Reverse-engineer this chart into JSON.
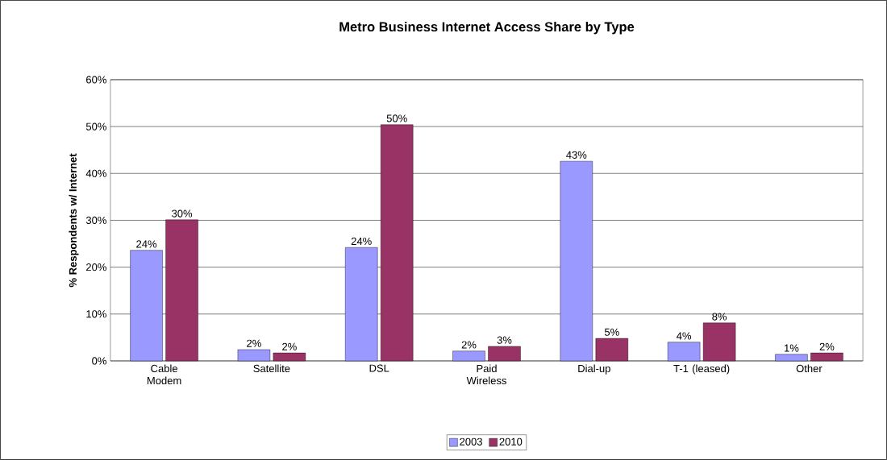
{
  "chart_data": {
    "type": "bar",
    "title": "Metro Business Internet Access Share by Type",
    "ylabel": "% Respondents w/ Internet",
    "categories": [
      "Cable Modem",
      "Satellite",
      "DSL",
      "Paid Wireless",
      "Dial-up",
      "T-1 (leased)",
      "Other"
    ],
    "series": [
      {
        "name": "2003",
        "color": "#9999ff",
        "values": [
          23.6,
          2.4,
          24.2,
          2.1,
          42.6,
          4.0,
          1.4
        ],
        "value_labels": [
          "24%",
          "2%",
          "24%",
          "2%",
          "43%",
          "4%",
          "1%"
        ]
      },
      {
        "name": "2010",
        "color": "#993366",
        "values": [
          30.1,
          1.7,
          50.4,
          3.1,
          4.8,
          8.1,
          1.7
        ],
        "value_labels": [
          "30%",
          "2%",
          "50%",
          "3%",
          "5%",
          "8%",
          "2%"
        ]
      }
    ],
    "ylim": [
      0,
      60
    ],
    "yticks": [
      {
        "value": 0,
        "label": "0%"
      },
      {
        "value": 10,
        "label": "10%"
      },
      {
        "value": 20,
        "label": "20%"
      },
      {
        "value": 30,
        "label": "30%"
      },
      {
        "value": 40,
        "label": "40%"
      },
      {
        "value": 50,
        "label": "50%"
      },
      {
        "value": 60,
        "label": "60%"
      }
    ],
    "grid": "y",
    "legend": "bottom"
  }
}
